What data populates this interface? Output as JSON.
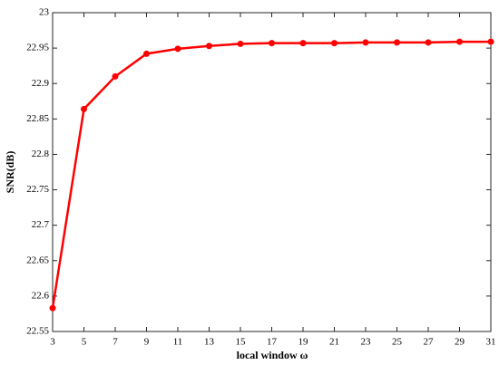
{
  "chart_data": {
    "type": "line",
    "x_label": "local window ω",
    "y_label": "SNR(dB)",
    "x": [
      3,
      5,
      7,
      9,
      11,
      13,
      15,
      17,
      19,
      21,
      23,
      25,
      27,
      29,
      31
    ],
    "series": [
      {
        "color": "#ff0000",
        "values": [
          22.583,
          22.864,
          22.91,
          22.942,
          22.949,
          22.953,
          22.956,
          22.957,
          22.957,
          22.957,
          22.958,
          22.958,
          22.958,
          22.959,
          22.959
        ]
      }
    ],
    "xlim": [
      3,
      31
    ],
    "xticks": [
      3,
      5,
      7,
      9,
      11,
      13,
      15,
      17,
      19,
      21,
      23,
      25,
      27,
      29,
      31
    ],
    "ylim": [
      22.55,
      23
    ],
    "yticks": [
      22.55,
      22.6,
      22.65,
      22.7,
      22.75,
      22.8,
      22.85,
      22.9,
      22.95,
      23
    ],
    "grid": false
  }
}
